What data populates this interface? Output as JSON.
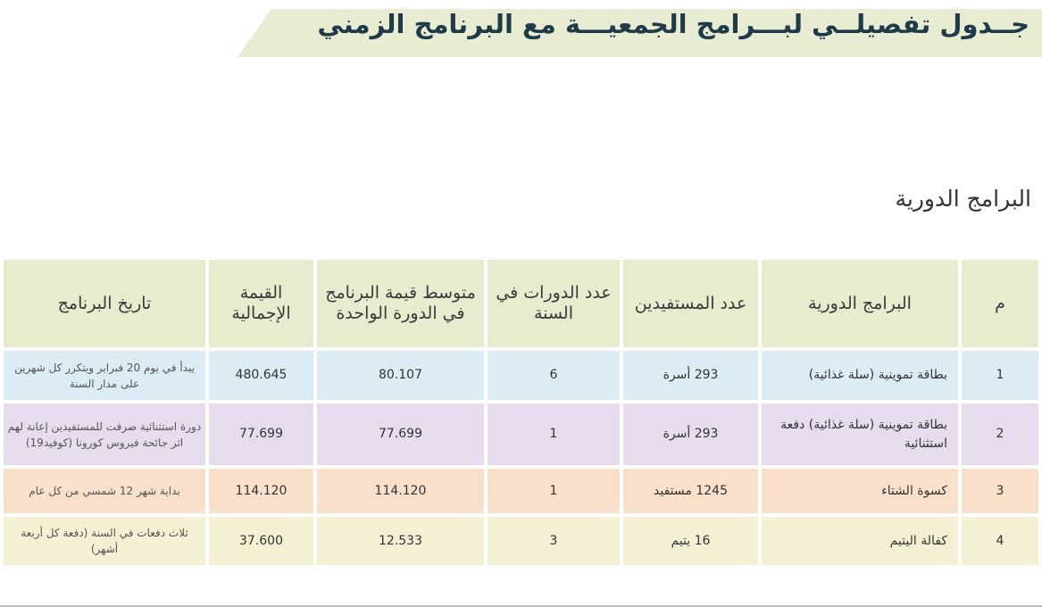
{
  "banner": {
    "title": "جــدول تفصيلــي لبـــرامج الجمعيـــة مع البرنامج الزمني"
  },
  "section": {
    "title": "البرامج الدورية"
  },
  "table": {
    "headers": {
      "index": "م",
      "program": "البرامج الدورية",
      "beneficiaries": "عدد المستفيدين",
      "cycles": "عدد الدورات في السنة",
      "average_value": "متوسط قيمة البرنامج في الدورة الواحدة",
      "total_value": "القيمة الإجمالية",
      "date": "تاريخ البرنامج"
    },
    "rows": [
      {
        "index": "1",
        "program": "بطاقة تموينية (سلة غذائية)",
        "beneficiaries": "293 أسرة",
        "cycles": "6",
        "average_value": "80.107",
        "total_value": "480.645",
        "date": "يبدأ في يوم 20 فبراير ويتكرر كل شهرين على مدار السنة"
      },
      {
        "index": "2",
        "program": "بطاقة تموينية (سلة غذائية) دفعة استثنائية",
        "beneficiaries": "293 أسرة",
        "cycles": "1",
        "average_value": "77.699",
        "total_value": "77.699",
        "date": "دورة استثنائية صرفت للمستفيدين إعانة لهم اثر جائحة فيروس كورونا (كوفيد19)"
      },
      {
        "index": "3",
        "program": "كسوة الشتاء",
        "beneficiaries": "1245 مستفيد",
        "cycles": "1",
        "average_value": "114.120",
        "total_value": "114.120",
        "date": "بداية شهر 12 شمسي من كل عام"
      },
      {
        "index": "4",
        "program": "كفالة اليتيم",
        "beneficiaries": "16 يتيم",
        "cycles": "3",
        "average_value": "12.533",
        "total_value": "37.600",
        "date": "ثلاث دفعات في السنة (دفعة كل أربعة أشهر)"
      }
    ]
  },
  "colors": {
    "header_bg": "#e7eccf",
    "row_1_bg": "#dcecf4",
    "row_2_bg": "#e6dcee",
    "row_3_bg": "#f9e0cb",
    "row_4_bg": "#f4f0d3",
    "title_color": "#1f3a48"
  }
}
